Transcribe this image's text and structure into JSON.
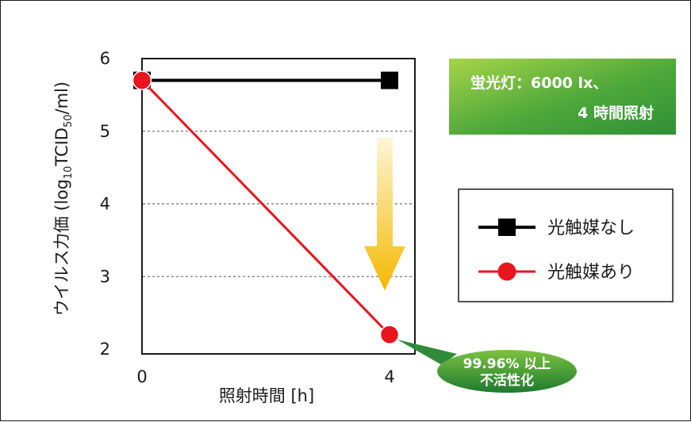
{
  "chart_data": {
    "type": "line",
    "xlabel": "照射時間 [h]",
    "ylabel": {
      "prefix": "ウイルス力価 (log",
      "sub1": "10",
      "mid": "TCID",
      "sub2": "50",
      "suffix": "/ml)"
    },
    "x": [
      0,
      4
    ],
    "x_ticks": [
      "0",
      "4"
    ],
    "y_ticks": [
      "2",
      "3",
      "4",
      "5",
      "6"
    ],
    "xlim": [
      0,
      4
    ],
    "ylim": [
      2,
      6
    ],
    "grid": "dashed horizontal at 3, 4, 5",
    "series": [
      {
        "name": "光触媒なし",
        "values": [
          5.7,
          5.7
        ],
        "color": "#000000",
        "marker": "square"
      },
      {
        "name": "光触媒あり",
        "values": [
          5.7,
          2.2
        ],
        "color": "#e8141e",
        "marker": "circle"
      }
    ],
    "legend_position": "right",
    "annotations": {
      "badge": {
        "line1": "蛍光灯：6000 lx、",
        "line2": "4 時間照射"
      },
      "bubble": {
        "line1": "99.96% 以上",
        "line2": "不活性化"
      }
    }
  },
  "colors": {
    "badge_green_light": "#8cc63f",
    "badge_green_dark": "#2e8b3a",
    "arrow_top": "#fdf3c8",
    "arrow_bottom": "#f5b800"
  }
}
